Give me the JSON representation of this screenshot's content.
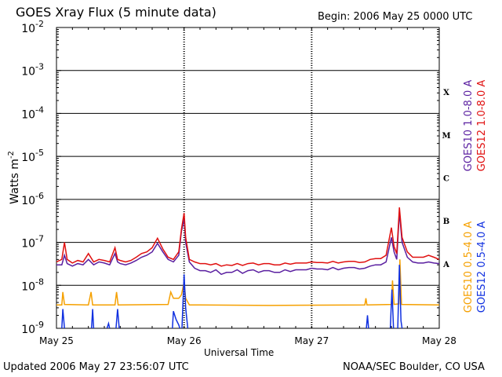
{
  "header": {
    "title": "GOES Xray Flux (5 minute data)",
    "begin": "Begin:  2006 May 25 0000 UTC"
  },
  "footer": {
    "updated": "Updated 2006 May 27 23:56:07 UTC",
    "source": "NOAA/SEC Boulder, CO USA"
  },
  "colors": {
    "goes10_long": "#5a1fa0",
    "goes12_long": "#e01010",
    "goes10_short": "#f5a000",
    "goes12_short": "#1030e0",
    "axis": "#000000",
    "dotted_grid": "#000000"
  },
  "chart_data": {
    "type": "line",
    "title": "GOES Xray Flux (5 minute data)",
    "xlabel": "Universal Time",
    "ylabel": "Watts m",
    "ylabel_superscript": "-2",
    "yscale": "log",
    "ylim": [
      1e-09,
      0.01
    ],
    "y_ticks": [
      {
        "base": "10",
        "exp": "-2",
        "value": 0.01
      },
      {
        "base": "10",
        "exp": "-3",
        "value": 0.001
      },
      {
        "base": "10",
        "exp": "-4",
        "value": 0.0001
      },
      {
        "base": "10",
        "exp": "-5",
        "value": 1e-05
      },
      {
        "base": "10",
        "exp": "-6",
        "value": 1e-06
      },
      {
        "base": "10",
        "exp": "-7",
        "value": 1e-07
      },
      {
        "base": "10",
        "exp": "-8",
        "value": 1e-08
      },
      {
        "base": "10",
        "exp": "-9",
        "value": 1e-09
      }
    ],
    "xlim": [
      0,
      72
    ],
    "x_ticks": [
      {
        "label": "May 25",
        "hour": 0
      },
      {
        "label": "May 26",
        "hour": 24
      },
      {
        "label": "May 27",
        "hour": 48
      },
      {
        "label": "May 28",
        "hour": 72
      }
    ],
    "flare_classes": [
      {
        "label": "X",
        "lower": 0.0001,
        "upper": 0.001
      },
      {
        "label": "M",
        "lower": 1e-05,
        "upper": 0.0001
      },
      {
        "label": "C",
        "lower": 1e-06,
        "upper": 1e-05
      },
      {
        "label": "B",
        "lower": 1e-07,
        "upper": 1e-06
      },
      {
        "label": "A",
        "lower": 1e-08,
        "upper": 1e-07
      }
    ],
    "grid": {
      "horizontal": true,
      "vertical_dotted_at_days": true
    },
    "legend_placement": "right-vertical",
    "series": [
      {
        "name": "GOES10 1.0-8.0 A",
        "color": "#5a1fa0",
        "points": [
          [
            0.0,
            3e-08
          ],
          [
            1.0,
            3e-08
          ],
          [
            1.5,
            5e-08
          ],
          [
            2.0,
            3.2e-08
          ],
          [
            3.0,
            2.8e-08
          ],
          [
            4.0,
            3.2e-08
          ],
          [
            5.0,
            3e-08
          ],
          [
            6.0,
            4e-08
          ],
          [
            7.0,
            3e-08
          ],
          [
            8.0,
            3.5e-08
          ],
          [
            9.0,
            3.3e-08
          ],
          [
            10.0,
            3e-08
          ],
          [
            11.0,
            5.5e-08
          ],
          [
            11.5,
            3.5e-08
          ],
          [
            12.0,
            3.2e-08
          ],
          [
            13.0,
            3e-08
          ],
          [
            14.0,
            3.3e-08
          ],
          [
            15.0,
            3.8e-08
          ],
          [
            16.0,
            4.5e-08
          ],
          [
            17.0,
            5e-08
          ],
          [
            18.0,
            6e-08
          ],
          [
            19.0,
            9.5e-08
          ],
          [
            20.0,
            6e-08
          ],
          [
            21.0,
            4e-08
          ],
          [
            22.0,
            3.5e-08
          ],
          [
            23.0,
            5e-08
          ],
          [
            23.5,
            1.8e-07
          ],
          [
            24.0,
            3.5e-07
          ],
          [
            24.3,
            1e-07
          ],
          [
            25.0,
            3.5e-08
          ],
          [
            26.0,
            2.5e-08
          ],
          [
            27.0,
            2.2e-08
          ],
          [
            28.0,
            2.2e-08
          ],
          [
            29.0,
            2e-08
          ],
          [
            30.0,
            2.3e-08
          ],
          [
            31.0,
            1.8e-08
          ],
          [
            32.0,
            2e-08
          ],
          [
            33.0,
            2e-08
          ],
          [
            34.0,
            2.3e-08
          ],
          [
            35.0,
            1.9e-08
          ],
          [
            36.0,
            2.2e-08
          ],
          [
            37.0,
            2.3e-08
          ],
          [
            38.0,
            2e-08
          ],
          [
            39.0,
            2.2e-08
          ],
          [
            40.0,
            2.2e-08
          ],
          [
            41.0,
            2e-08
          ],
          [
            42.0,
            2e-08
          ],
          [
            43.0,
            2.3e-08
          ],
          [
            44.0,
            2.1e-08
          ],
          [
            45.0,
            2.3e-08
          ],
          [
            46.0,
            2.3e-08
          ],
          [
            47.0,
            2.3e-08
          ],
          [
            48.0,
            2.5e-08
          ],
          [
            49.0,
            2.4e-08
          ],
          [
            50.0,
            2.4e-08
          ],
          [
            51.0,
            2.3e-08
          ],
          [
            52.0,
            2.6e-08
          ],
          [
            53.0,
            2.3e-08
          ],
          [
            54.0,
            2.5e-08
          ],
          [
            55.0,
            2.6e-08
          ],
          [
            56.0,
            2.6e-08
          ],
          [
            57.0,
            2.4e-08
          ],
          [
            58.0,
            2.5e-08
          ],
          [
            59.0,
            2.8e-08
          ],
          [
            60.0,
            3e-08
          ],
          [
            61.0,
            3e-08
          ],
          [
            62.0,
            3.5e-08
          ],
          [
            63.0,
            1.3e-07
          ],
          [
            63.5,
            6e-08
          ],
          [
            64.0,
            4e-08
          ],
          [
            64.5,
            5e-07
          ],
          [
            65.0,
            1e-07
          ],
          [
            66.0,
            4.5e-08
          ],
          [
            67.0,
            3.5e-08
          ],
          [
            68.0,
            3.3e-08
          ],
          [
            69.0,
            3.3e-08
          ],
          [
            70.0,
            3.5e-08
          ],
          [
            71.0,
            3.3e-08
          ],
          [
            72.0,
            3.2e-08
          ]
        ]
      },
      {
        "name": "GOES12 1.0-8.0 A",
        "color": "#e01010",
        "points": [
          [
            0.0,
            3.5e-08
          ],
          [
            1.0,
            4e-08
          ],
          [
            1.5,
            1e-07
          ],
          [
            2.0,
            4e-08
          ],
          [
            3.0,
            3.3e-08
          ],
          [
            4.0,
            3.8e-08
          ],
          [
            5.0,
            3.5e-08
          ],
          [
            6.0,
            5.5e-08
          ],
          [
            7.0,
            3.5e-08
          ],
          [
            8.0,
            4e-08
          ],
          [
            9.0,
            3.8e-08
          ],
          [
            10.0,
            3.5e-08
          ],
          [
            11.0,
            7.5e-08
          ],
          [
            11.5,
            4e-08
          ],
          [
            12.0,
            3.8e-08
          ],
          [
            13.0,
            3.5e-08
          ],
          [
            14.0,
            3.8e-08
          ],
          [
            15.0,
            4.5e-08
          ],
          [
            16.0,
            5.5e-08
          ],
          [
            17.0,
            6e-08
          ],
          [
            18.0,
            7.5e-08
          ],
          [
            19.0,
            1.25e-07
          ],
          [
            20.0,
            7e-08
          ],
          [
            21.0,
            4.5e-08
          ],
          [
            22.0,
            4e-08
          ],
          [
            23.0,
            6e-08
          ],
          [
            23.5,
            2e-07
          ],
          [
            24.0,
            4.8e-07
          ],
          [
            24.3,
            1.3e-07
          ],
          [
            25.0,
            4e-08
          ],
          [
            26.0,
            3.5e-08
          ],
          [
            27.0,
            3.2e-08
          ],
          [
            28.0,
            3.2e-08
          ],
          [
            29.0,
            3e-08
          ],
          [
            30.0,
            3.2e-08
          ],
          [
            31.0,
            2.8e-08
          ],
          [
            32.0,
            3e-08
          ],
          [
            33.0,
            2.9e-08
          ],
          [
            34.0,
            3.2e-08
          ],
          [
            35.0,
            2.9e-08
          ],
          [
            36.0,
            3.2e-08
          ],
          [
            37.0,
            3.3e-08
          ],
          [
            38.0,
            3e-08
          ],
          [
            39.0,
            3.2e-08
          ],
          [
            40.0,
            3.2e-08
          ],
          [
            41.0,
            3e-08
          ],
          [
            42.0,
            3e-08
          ],
          [
            43.0,
            3.3e-08
          ],
          [
            44.0,
            3.1e-08
          ],
          [
            45.0,
            3.3e-08
          ],
          [
            46.0,
            3.3e-08
          ],
          [
            47.0,
            3.3e-08
          ],
          [
            48.0,
            3.5e-08
          ],
          [
            49.0,
            3.4e-08
          ],
          [
            50.0,
            3.4e-08
          ],
          [
            51.0,
            3.3e-08
          ],
          [
            52.0,
            3.6e-08
          ],
          [
            53.0,
            3.3e-08
          ],
          [
            54.0,
            3.5e-08
          ],
          [
            55.0,
            3.6e-08
          ],
          [
            56.0,
            3.6e-08
          ],
          [
            57.0,
            3.4e-08
          ],
          [
            58.0,
            3.5e-08
          ],
          [
            59.0,
            4e-08
          ],
          [
            60.0,
            4.2e-08
          ],
          [
            61.0,
            4.2e-08
          ],
          [
            62.0,
            5e-08
          ],
          [
            63.0,
            2.2e-07
          ],
          [
            63.5,
            8e-08
          ],
          [
            64.0,
            5.5e-08
          ],
          [
            64.5,
            6.5e-07
          ],
          [
            65.0,
            1.3e-07
          ],
          [
            66.0,
            6e-08
          ],
          [
            67.0,
            4.5e-08
          ],
          [
            68.0,
            4.5e-08
          ],
          [
            69.0,
            4.5e-08
          ],
          [
            70.0,
            5e-08
          ],
          [
            71.0,
            4.5e-08
          ],
          [
            72.0,
            4e-08
          ]
        ]
      },
      {
        "name": "GOES10 0.5-4.0 A",
        "color": "#f5a000",
        "points": [
          [
            0.0,
            3.5e-09
          ],
          [
            1.0,
            3.5e-09
          ],
          [
            1.2,
            7e-09
          ],
          [
            1.5,
            3.6e-09
          ],
          [
            6.0,
            3.5e-09
          ],
          [
            6.5,
            7e-09
          ],
          [
            6.8,
            3.5e-09
          ],
          [
            11.0,
            3.5e-09
          ],
          [
            11.3,
            7e-09
          ],
          [
            11.6,
            3.5e-09
          ],
          [
            21.0,
            3.6e-09
          ],
          [
            21.5,
            7e-09
          ],
          [
            22.0,
            5e-09
          ],
          [
            23.0,
            5e-09
          ],
          [
            23.5,
            6e-09
          ],
          [
            24.0,
            1.2e-08
          ],
          [
            24.3,
            5e-09
          ],
          [
            25.0,
            3.5e-09
          ],
          [
            40.0,
            3.4e-09
          ],
          [
            58.0,
            3.5e-09
          ],
          [
            58.2,
            5e-09
          ],
          [
            58.4,
            3.5e-09
          ],
          [
            63.0,
            3.6e-09
          ],
          [
            63.2,
            1.3e-08
          ],
          [
            63.5,
            3.6e-09
          ],
          [
            64.4,
            3.7e-09
          ],
          [
            64.6,
            4e-08
          ],
          [
            64.9,
            3.6e-09
          ],
          [
            72.0,
            3.5e-09
          ]
        ]
      },
      {
        "name": "GOES12 0.5-4.0 A",
        "color": "#1030e0",
        "segments": [
          [
            [
              1.0,
              1e-09
            ],
            [
              1.2,
              2.8e-09
            ],
            [
              1.5,
              1e-09
            ]
          ],
          [
            [
              6.6,
              1e-09
            ],
            [
              6.8,
              2.8e-09
            ],
            [
              7.0,
              1e-09
            ]
          ],
          [
            [
              9.5,
              1e-09
            ],
            [
              9.8,
              1.3e-09
            ],
            [
              10.0,
              1e-09
            ]
          ],
          [
            [
              11.2,
              1e-09
            ],
            [
              11.5,
              2.8e-09
            ],
            [
              11.8,
              1e-09
            ]
          ],
          [
            [
              21.8,
              1e-09
            ],
            [
              22.0,
              2.5e-09
            ],
            [
              22.5,
              1.6e-09
            ],
            [
              23.0,
              1.2e-09
            ],
            [
              23.2,
              1e-09
            ]
          ],
          [
            [
              23.6,
              1e-09
            ],
            [
              24.0,
              1.8e-08
            ],
            [
              24.3,
              3e-09
            ],
            [
              24.7,
              1e-09
            ]
          ],
          [
            [
              58.3,
              1e-09
            ],
            [
              58.5,
              2e-09
            ],
            [
              58.7,
              1e-09
            ]
          ],
          [
            [
              62.8,
              1e-09
            ],
            [
              63.1,
              8e-09
            ],
            [
              63.4,
              1e-09
            ]
          ],
          [
            [
              64.2,
              1e-09
            ],
            [
              64.5,
              3e-08
            ],
            [
              64.8,
              1.5e-09
            ],
            [
              65.0,
              1e-09
            ]
          ]
        ]
      }
    ]
  }
}
